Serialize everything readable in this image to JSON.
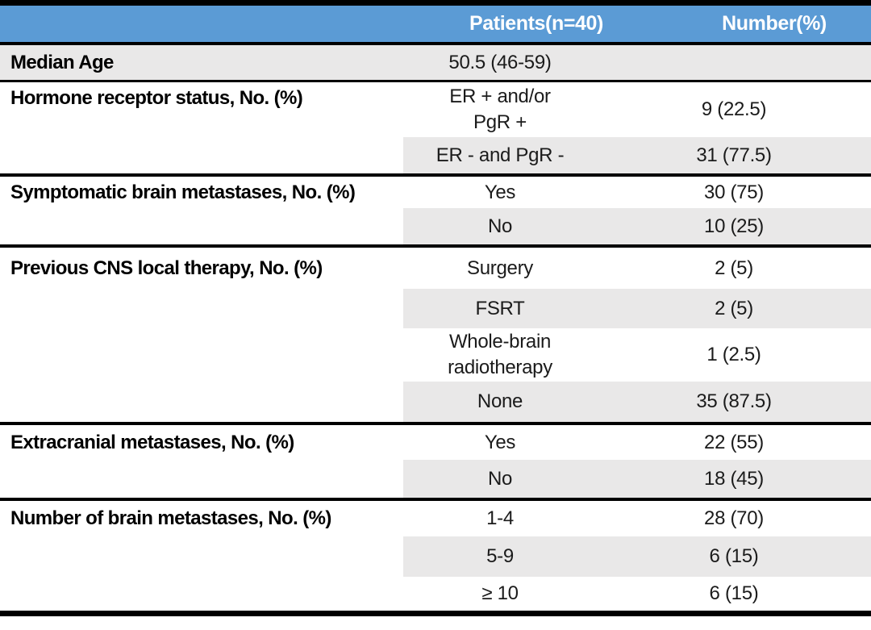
{
  "table": {
    "header": {
      "col2": "Patients(n=40)",
      "col3": "Number(%)"
    },
    "groups": [
      {
        "label": "Median Age",
        "subrows": [
          {
            "value": "50.5 (46-59)",
            "number": ""
          }
        ]
      },
      {
        "label": "Hormone receptor status, No. (%)",
        "subrows": [
          {
            "value": "ER + and/or\nPgR +",
            "number": "9 (22.5)"
          },
          {
            "value": "ER - and PgR -",
            "number": "31 (77.5)"
          }
        ]
      },
      {
        "label": "Symptomatic brain metastases, No. (%)",
        "subrows": [
          {
            "value": "Yes",
            "number": "30 (75)"
          },
          {
            "value": "No",
            "number": "10 (25)"
          }
        ]
      },
      {
        "label": "Previous CNS local therapy, No. (%)",
        "subrows": [
          {
            "value": "Surgery",
            "number": "2 (5)"
          },
          {
            "value": "FSRT",
            "number": "2 (5)"
          },
          {
            "value": "Whole-brain\nradiotherapy",
            "number": "1 (2.5)"
          },
          {
            "value": "None",
            "number": "35 (87.5)"
          }
        ]
      },
      {
        "label": "Extracranial metastases, No. (%)",
        "subrows": [
          {
            "value": "Yes",
            "number": "22 (55)"
          },
          {
            "value": "No",
            "number": "18 (45)"
          }
        ]
      },
      {
        "label": "Number of brain metastases, No. (%)",
        "subrows": [
          {
            "value": "1-4",
            "number": "28 (70)"
          },
          {
            "value": "5-9",
            "number": "6 (15)"
          },
          {
            "value": "≥ 10",
            "number": "6 (15)"
          }
        ]
      }
    ],
    "colors": {
      "header_background": "#5B9BD5",
      "header_text": "#FFFFFF",
      "row_shading": "#E9E8E8",
      "rule_color": "#000000"
    }
  }
}
